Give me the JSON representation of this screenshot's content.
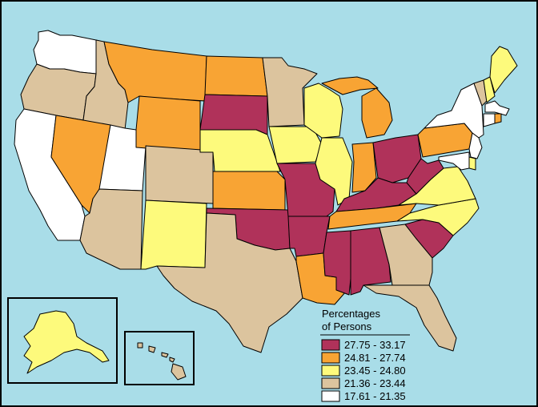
{
  "colors": {
    "water": "#a9dde8",
    "border": "#000000"
  },
  "legend": {
    "title_line1": "Percentages",
    "title_line2": "of Persons",
    "classes": [
      {
        "id": "c1",
        "label": "27.75 - 33.17",
        "color": "#b0325a"
      },
      {
        "id": "c2",
        "label": "24.81 - 27.74",
        "color": "#f8a434"
      },
      {
        "id": "c3",
        "label": "23.45 - 24.80",
        "color": "#fdfa7c"
      },
      {
        "id": "c4",
        "label": "21.36 - 23.44",
        "color": "#dcc49e"
      },
      {
        "id": "c5",
        "label": "17.61 - 21.35",
        "color": "#ffffff"
      }
    ]
  },
  "states": {
    "WA": "c5",
    "OR": "c4",
    "CA": "c5",
    "ID": "c4",
    "NV": "c2",
    "UT": "c5",
    "AZ": "c4",
    "MT": "c2",
    "WY": "c2",
    "CO": "c4",
    "NM": "c3",
    "ND": "c2",
    "SD": "c1",
    "NE": "c3",
    "KS": "c2",
    "OK": "c1",
    "TX": "c4",
    "MN": "c4",
    "IA": "c3",
    "MO": "c1",
    "AR": "c1",
    "LA": "c2",
    "WI": "c3",
    "IL": "c3",
    "MI": "c2",
    "IN": "c2",
    "OH": "c1",
    "KY": "c1",
    "TN": "c2",
    "MS": "c1",
    "AL": "c1",
    "GA": "c4",
    "FL": "c4",
    "SC": "c1",
    "NC": "c3",
    "VA": "c3",
    "WV": "c1",
    "PA": "c2",
    "NY": "c5",
    "VT": "c4",
    "NH": "c3",
    "ME": "c3",
    "MA": "c5",
    "RI": "c2",
    "CT": "c5",
    "NJ": "c5",
    "DE": "c3",
    "MD": "c5",
    "AK": "c3",
    "HI": "c4"
  }
}
